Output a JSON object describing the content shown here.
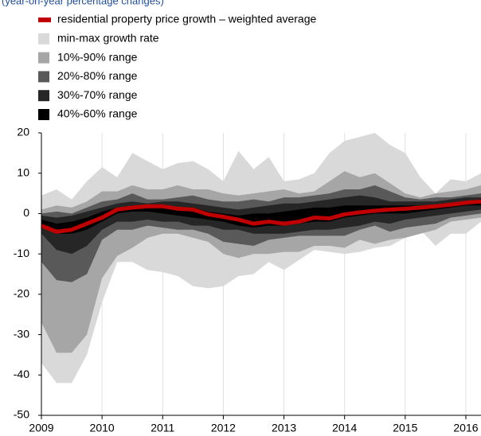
{
  "chart_data": {
    "type": "fan",
    "subtitle": "(year-on-year percentage changes)",
    "x": [
      2009,
      2009.25,
      2009.5,
      2009.75,
      2010,
      2010.25,
      2010.5,
      2010.75,
      2011,
      2011.25,
      2011.5,
      2011.75,
      2012,
      2012.25,
      2012.5,
      2012.75,
      2013,
      2013.25,
      2013.5,
      2013.75,
      2014,
      2014.25,
      2014.5,
      2014.75,
      2015,
      2015.25,
      2015.5,
      2015.75,
      2016,
      2016.25
    ],
    "xlim": [
      2009,
      2016.25
    ],
    "xticks": [
      2009,
      2010,
      2011,
      2012,
      2013,
      2014,
      2015,
      2016
    ],
    "ylim": [
      -50,
      20
    ],
    "yticks": [
      -50,
      -40,
      -30,
      -20,
      -10,
      0,
      10,
      20
    ],
    "grid": true,
    "series": [
      {
        "name": "residential property price growth – weighted average",
        "color": "#c00000",
        "values": [
          -3,
          -4.5,
          -4,
          -2.5,
          -1,
          1,
          1.5,
          1.8,
          1.8,
          1.2,
          1,
          -0.2,
          -0.8,
          -1.5,
          -2.5,
          -2,
          -2.5,
          -2,
          -1,
          -1.2,
          -0.2,
          0.3,
          0.7,
          1,
          1.2,
          1.5,
          1.8,
          2.2,
          2.7,
          3
        ]
      },
      {
        "name": "min-max growth rate",
        "color": "#d9d9d9",
        "upper": [
          4.5,
          6,
          3.5,
          8,
          11.5,
          9,
          15,
          13,
          11,
          12.5,
          13,
          11,
          8,
          15.5,
          11,
          14,
          8,
          8.5,
          10,
          15,
          18,
          19,
          20,
          17,
          15,
          9,
          5,
          8.5,
          8,
          10
        ],
        "lower": [
          -37,
          -42,
          -42,
          -35,
          -22,
          -12,
          -12,
          -14,
          -14.5,
          -15.5,
          -18,
          -18.5,
          -18,
          -15.5,
          -15,
          -12,
          -14,
          -11.5,
          -9,
          -9.5,
          -10,
          -9.5,
          -8.5,
          -8,
          -6,
          -4,
          -8,
          -5,
          -5,
          -2
        ]
      },
      {
        "name": "10%-90% range",
        "color": "#a6a6a6",
        "upper": [
          1,
          2,
          1.5,
          3,
          5.5,
          5.5,
          7,
          6,
          6,
          7,
          6,
          6,
          5,
          4.5,
          5,
          5.5,
          6,
          5,
          5.5,
          8,
          10.5,
          9,
          10,
          7.5,
          5,
          4,
          5,
          5.5,
          6,
          7
        ],
        "lower": [
          -27,
          -34.5,
          -34.5,
          -30,
          -16,
          -10.5,
          -8.5,
          -6,
          -5,
          -5,
          -6,
          -7,
          -10,
          -11,
          -10,
          -10,
          -9.5,
          -9.5,
          -8,
          -8,
          -8.5,
          -6.5,
          -7.5,
          -6.5,
          -6,
          -5,
          -4,
          -2,
          -1.5,
          -1
        ]
      },
      {
        "name": "20%-80% range",
        "color": "#595959",
        "upper": [
          0,
          0.5,
          0,
          1.5,
          3,
          3.5,
          5,
          3.5,
          3.5,
          4,
          4.5,
          3.5,
          3,
          3,
          3.5,
          3,
          4,
          4,
          4.5,
          5,
          6,
          6,
          7,
          5.5,
          4,
          3.5,
          4,
          4,
          4.5,
          5
        ],
        "lower": [
          -12,
          -16.5,
          -17,
          -15,
          -6.5,
          -4,
          -4,
          -3,
          -3.5,
          -4,
          -4,
          -5,
          -7,
          -7.5,
          -8,
          -6.5,
          -6,
          -5.5,
          -5.5,
          -5.5,
          -5.5,
          -4,
          -3,
          -4.5,
          -3.5,
          -3,
          -2.5,
          -1,
          -0.5,
          0
        ]
      },
      {
        "name": "30%-70% range",
        "color": "#262626",
        "upper": [
          -0.5,
          -1,
          -0.5,
          0.5,
          1.5,
          2.5,
          3,
          2.5,
          3,
          3,
          2.5,
          2,
          1.5,
          1,
          1.5,
          2,
          2.5,
          2.5,
          3,
          3.5,
          4,
          4.5,
          4,
          3,
          3,
          3,
          3,
          3.5,
          4,
          4
        ],
        "lower": [
          -5,
          -9,
          -10,
          -8,
          -4,
          -2,
          -2,
          -1.5,
          -2,
          -2,
          -3,
          -3,
          -4,
          -4,
          -5,
          -5,
          -5,
          -4.5,
          -4,
          -4,
          -3.5,
          -3,
          -2,
          -2.5,
          -1.5,
          -1,
          -0.5,
          0,
          0.5,
          1
        ]
      },
      {
        "name": "40%-60% range",
        "color": "#000000",
        "upper": [
          -1.5,
          -2.5,
          -2,
          -1,
          0.5,
          1.5,
          2,
          2,
          2,
          1.5,
          1.5,
          0.5,
          0,
          -0.5,
          0,
          0,
          0.5,
          1,
          1.5,
          1.5,
          2,
          2,
          2,
          2,
          2,
          2,
          2,
          2.5,
          3,
          3.5
        ],
        "lower": [
          -3,
          -5,
          -5,
          -4,
          -2,
          0,
          0.5,
          0.5,
          0,
          -0.5,
          -1,
          -1.5,
          -2,
          -3,
          -3.5,
          -3,
          -3,
          -2.5,
          -2,
          -2,
          -1,
          -0.5,
          0,
          0,
          0,
          0.5,
          1,
          1.5,
          2,
          2
        ]
      }
    ]
  }
}
